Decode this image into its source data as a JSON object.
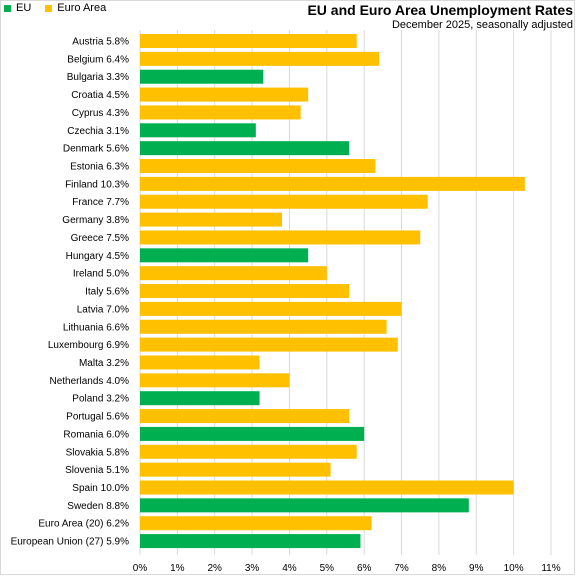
{
  "chart_data": {
    "type": "bar",
    "orientation": "horizontal",
    "title": "EU and Euro Area Unemployment Rates",
    "subtitle": "December 2025, seasonally adjusted",
    "legend": {
      "placement": "top-left",
      "items": [
        {
          "label": "EU",
          "color": "#00b050"
        },
        {
          "label": "Euro Area",
          "color": "#ffc000"
        }
      ]
    },
    "xlim": [
      0,
      11
    ],
    "x_ticks": [
      "0%",
      "1%",
      "2%",
      "3%",
      "4%",
      "5%",
      "6%",
      "7%",
      "8%",
      "9%",
      "10%",
      "11%"
    ],
    "grid": true,
    "bars": [
      {
        "label": "Austria 5.8%",
        "value": 5.8,
        "group": "Euro Area"
      },
      {
        "label": "Belgium 6.4%",
        "value": 6.4,
        "group": "Euro Area"
      },
      {
        "label": "Bulgaria 3.3%",
        "value": 3.3,
        "group": "EU"
      },
      {
        "label": "Croatia 4.5%",
        "value": 4.5,
        "group": "Euro Area"
      },
      {
        "label": "Cyprus 4.3%",
        "value": 4.3,
        "group": "Euro Area"
      },
      {
        "label": "Czechia 3.1%",
        "value": 3.1,
        "group": "EU"
      },
      {
        "label": "Denmark 5.6%",
        "value": 5.6,
        "group": "EU"
      },
      {
        "label": "Estonia 6.3%",
        "value": 6.3,
        "group": "Euro Area"
      },
      {
        "label": "Finland 10.3%",
        "value": 10.3,
        "group": "Euro Area"
      },
      {
        "label": "France 7.7%",
        "value": 7.7,
        "group": "Euro Area"
      },
      {
        "label": "Germany 3.8%",
        "value": 3.8,
        "group": "Euro Area"
      },
      {
        "label": "Greece 7.5%",
        "value": 7.5,
        "group": "Euro Area"
      },
      {
        "label": "Hungary 4.5%",
        "value": 4.5,
        "group": "EU"
      },
      {
        "label": "Ireland 5.0%",
        "value": 5.0,
        "group": "Euro Area"
      },
      {
        "label": "Italy 5.6%",
        "value": 5.6,
        "group": "Euro Area"
      },
      {
        "label": "Latvia 7.0%",
        "value": 7.0,
        "group": "Euro Area"
      },
      {
        "label": "Lithuania 6.6%",
        "value": 6.6,
        "group": "Euro Area"
      },
      {
        "label": "Luxembourg 6.9%",
        "value": 6.9,
        "group": "Euro Area"
      },
      {
        "label": "Malta 3.2%",
        "value": 3.2,
        "group": "Euro Area"
      },
      {
        "label": "Netherlands 4.0%",
        "value": 4.0,
        "group": "Euro Area"
      },
      {
        "label": "Poland 3.2%",
        "value": 3.2,
        "group": "EU"
      },
      {
        "label": "Portugal 5.6%",
        "value": 5.6,
        "group": "Euro Area"
      },
      {
        "label": "Romania 6.0%",
        "value": 6.0,
        "group": "EU"
      },
      {
        "label": "Slovakia 5.8%",
        "value": 5.8,
        "group": "Euro Area"
      },
      {
        "label": "Slovenia 5.1%",
        "value": 5.1,
        "group": "Euro Area"
      },
      {
        "label": "Spain 10.0%",
        "value": 10.0,
        "group": "Euro Area"
      },
      {
        "label": "Sweden 8.8%",
        "value": 8.8,
        "group": "EU"
      },
      {
        "label": "Euro Area (20) 6.2%",
        "value": 6.2,
        "group": "Euro Area"
      },
      {
        "label": "European Union (27) 5.9%",
        "value": 5.9,
        "group": "EU"
      }
    ]
  }
}
